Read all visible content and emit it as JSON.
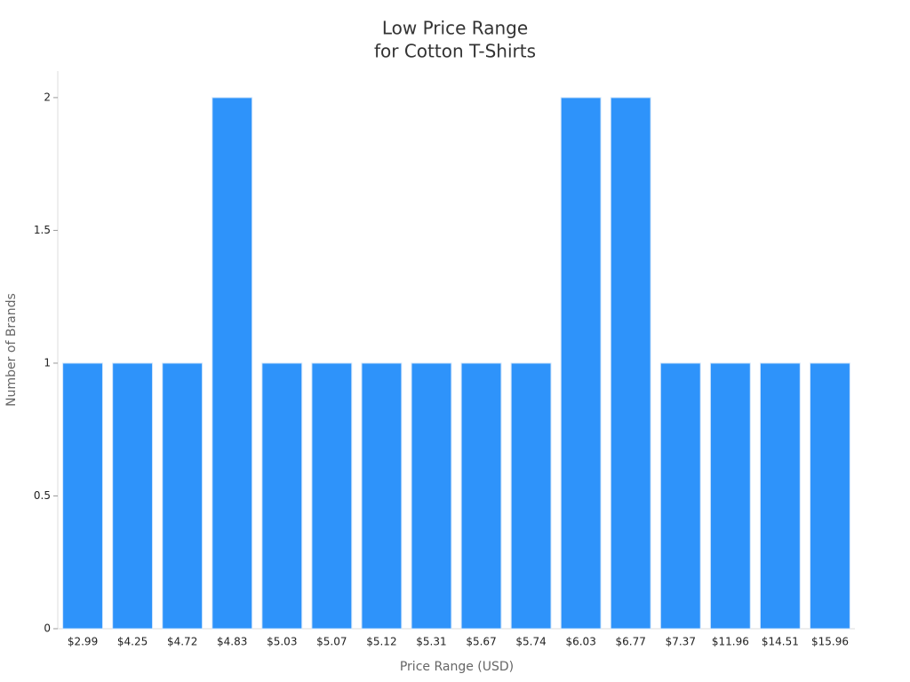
{
  "chart_data": {
    "type": "bar",
    "title": [
      "Low Price Range",
      "for Cotton T-Shirts"
    ],
    "x_label": "Price Range (USD)",
    "y_label": "Number of Brands",
    "categories": [
      "$2.99",
      "$4.25",
      "$4.72",
      "$4.83",
      "$5.03",
      "$5.07",
      "$5.12",
      "$5.31",
      "$5.67",
      "$5.74",
      "$6.03",
      "$6.77",
      "$7.37",
      "$11.96",
      "$14.51",
      "$15.96"
    ],
    "values": [
      1,
      1,
      1,
      2,
      1,
      1,
      1,
      1,
      1,
      1,
      2,
      2,
      1,
      1,
      1,
      1
    ],
    "color": "#2e93fa",
    "ylim": [
      0,
      2.1
    ],
    "yticks": [
      0,
      0.5,
      1,
      1.5,
      2
    ],
    "grid": false
  }
}
